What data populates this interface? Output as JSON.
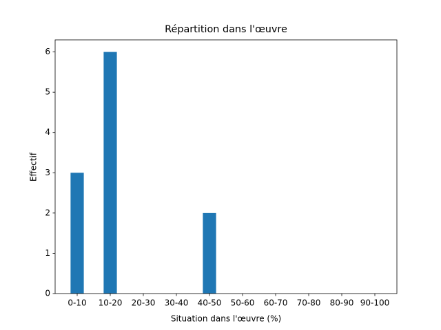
{
  "chart_data": {
    "type": "bar",
    "title": "Répartition dans l'œuvre",
    "x_label": "Situation dans l'œuvre (%)",
    "y_label": "Effectif",
    "categories": [
      "0-10",
      "10-20",
      "20-30",
      "30-40",
      "40-50",
      "50-60",
      "60-70",
      "70-80",
      "80-90",
      "90-100"
    ],
    "values": [
      3,
      6,
      0,
      0,
      2,
      0,
      0,
      0,
      0,
      0
    ],
    "color": "#1f77b4",
    "ylim": [
      0,
      6.3
    ],
    "yticks": [
      0,
      1,
      2,
      3,
      4,
      5,
      6
    ],
    "grid": false
  }
}
